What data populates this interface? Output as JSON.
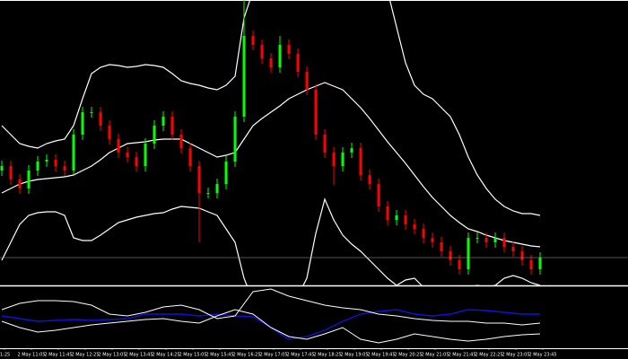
{
  "chart_data": {
    "type": "candlestick",
    "up_color": "#00ff00",
    "down_color": "#ff0000",
    "band_color": "#ffffff",
    "xlim": [
      -0.2,
      69.8
    ],
    "ylim": [
      0,
      318
    ],
    "open": [
      128,
      133,
      118,
      108,
      128,
      138,
      140,
      133,
      128,
      168,
      193,
      193,
      178,
      163,
      148,
      143,
      133,
      158,
      178,
      188,
      168,
      153,
      133,
      103,
      103,
      113,
      138,
      188,
      278,
      268,
      253,
      243,
      268,
      258,
      238,
      218,
      168,
      148,
      133,
      148,
      153,
      123,
      113,
      88,
      73,
      78,
      68,
      63,
      53,
      48,
      38,
      28,
      18,
      53,
      53,
      48,
      53,
      43,
      38,
      28,
      18
    ],
    "high": [
      139,
      139,
      124,
      134,
      144,
      146,
      146,
      139,
      174,
      199,
      199,
      199,
      184,
      169,
      154,
      149,
      164,
      184,
      194,
      194,
      174,
      159,
      139,
      109,
      119,
      144,
      194,
      318,
      284,
      274,
      259,
      278,
      274,
      264,
      244,
      224,
      174,
      154,
      154,
      159,
      159,
      129,
      119,
      94,
      84,
      84,
      74,
      69,
      59,
      54,
      44,
      34,
      59,
      59,
      59,
      59,
      59,
      49,
      44,
      34,
      37
    ],
    "low": [
      122,
      112,
      102,
      102,
      122,
      132,
      127,
      122,
      122,
      162,
      187,
      172,
      157,
      142,
      137,
      127,
      127,
      152,
      172,
      162,
      147,
      127,
      48,
      97,
      97,
      107,
      132,
      182,
      262,
      247,
      237,
      237,
      252,
      232,
      212,
      162,
      142,
      112,
      127,
      142,
      117,
      107,
      82,
      67,
      67,
      62,
      57,
      47,
      42,
      32,
      22,
      12,
      12,
      47,
      42,
      42,
      37,
      32,
      22,
      12,
      12
    ],
    "close": [
      133,
      118,
      108,
      128,
      138,
      140,
      133,
      128,
      168,
      193,
      193,
      178,
      163,
      148,
      143,
      133,
      158,
      178,
      188,
      168,
      153,
      133,
      103,
      103,
      113,
      138,
      188,
      278,
      268,
      253,
      243,
      268,
      258,
      238,
      218,
      168,
      148,
      133,
      148,
      153,
      123,
      113,
      88,
      73,
      78,
      68,
      63,
      53,
      48,
      38,
      28,
      18,
      53,
      53,
      48,
      53,
      43,
      38,
      28,
      18,
      31
    ],
    "bands": {
      "upper": [
        178,
        168,
        158,
        155,
        153,
        158,
        161,
        163,
        178,
        208,
        236,
        243,
        246,
        245,
        243,
        244,
        246,
        245,
        243,
        236,
        228,
        225,
        223,
        220,
        218,
        223,
        233,
        298,
        328,
        348,
        358,
        363,
        368,
        370,
        373,
        373,
        373,
        373,
        373,
        373,
        370,
        363,
        348,
        328,
        288,
        248,
        223,
        213,
        208,
        198,
        188,
        168,
        143,
        123,
        108,
        96,
        88,
        83,
        80,
        80,
        78
      ],
      "middle": [
        103,
        108,
        113,
        116,
        118,
        119,
        120,
        121,
        123,
        128,
        133,
        140,
        148,
        153,
        158,
        159,
        160,
        162,
        163,
        163,
        163,
        158,
        153,
        148,
        143,
        145,
        148,
        163,
        178,
        186,
        193,
        200,
        208,
        213,
        218,
        222,
        226,
        222,
        218,
        208,
        198,
        186,
        173,
        160,
        148,
        136,
        123,
        110,
        98,
        88,
        78,
        70,
        63,
        60,
        56,
        53,
        50,
        48,
        46,
        44,
        43
      ],
      "lower": [
        28,
        48,
        68,
        78,
        81,
        82,
        82,
        78,
        53,
        50,
        50,
        56,
        63,
        70,
        73,
        76,
        78,
        80,
        81,
        85,
        88,
        87,
        86,
        82,
        78,
        63,
        48,
        8,
        -17,
        -27,
        -27,
        -27,
        -22,
        -12,
        8,
        58,
        96,
        73,
        56,
        46,
        38,
        28,
        18,
        8,
        0,
        6,
        8,
        -2,
        -12,
        -17,
        -17,
        -12,
        -2,
        0,
        -2,
        0,
        8,
        11,
        8,
        3,
        0
      ]
    },
    "indicator": {
      "ylim": [
        0,
        68
      ],
      "series": [
        {
          "color": "#1010e0",
          "values": [
            36,
            33,
            30,
            31,
            32,
            31,
            32,
            33,
            38,
            38,
            38,
            36,
            38,
            36,
            35,
            23,
            10,
            13,
            20,
            30,
            38,
            41,
            43,
            38,
            36,
            38,
            43,
            42,
            40,
            38,
            38
          ]
        },
        {
          "color": "#ffffff",
          "values": [
            43,
            50,
            53,
            53,
            52,
            48,
            38,
            36,
            40,
            46,
            48,
            43,
            33,
            36,
            63,
            66,
            58,
            53,
            48,
            45,
            43,
            38,
            36,
            33,
            31,
            30,
            30,
            28,
            28,
            26,
            28
          ]
        },
        {
          "color": "#ffffff",
          "values": [
            30,
            23,
            18,
            20,
            23,
            26,
            28,
            30,
            32,
            33,
            30,
            28,
            36,
            43,
            38,
            23,
            13,
            10,
            16,
            23,
            10,
            6,
            10,
            16,
            13,
            10,
            8,
            10,
            13,
            15,
            16
          ]
        }
      ]
    },
    "xticks": [
      {
        "value": 0.3,
        "label": "1:25"
      },
      {
        "value": 3.3,
        "label": "2 May 11:05"
      },
      {
        "value": 6.3,
        "label": "2 May 11:45"
      },
      {
        "value": 9.3,
        "label": "2 May 12:25"
      },
      {
        "value": 12.3,
        "label": "2 May 13:05"
      },
      {
        "value": 15.3,
        "label": "2 May 13:45"
      },
      {
        "value": 18.3,
        "label": "2 May 14:25"
      },
      {
        "value": 21.3,
        "label": "2 May 15:05"
      },
      {
        "value": 24.3,
        "label": "2 May 15:45"
      },
      {
        "value": 27.3,
        "label": "2 May 16:25"
      },
      {
        "value": 30.3,
        "label": "2 May 17:05"
      },
      {
        "value": 33.3,
        "label": "2 May 17:45"
      },
      {
        "value": 36.3,
        "label": "2 May 18:25"
      },
      {
        "value": 39.3,
        "label": "2 May 19:05"
      },
      {
        "value": 42.3,
        "label": "2 May 19:45"
      },
      {
        "value": 45.3,
        "label": "2 May 20:25"
      },
      {
        "value": 48.3,
        "label": "2 May 21:05"
      },
      {
        "value": 51.3,
        "label": "2 May 21:45"
      },
      {
        "value": 54.3,
        "label": "2 May 22:25"
      },
      {
        "value": 57.3,
        "label": "2 May 23:05"
      },
      {
        "value": 60.3,
        "label": "2 May 23:45"
      }
    ]
  }
}
